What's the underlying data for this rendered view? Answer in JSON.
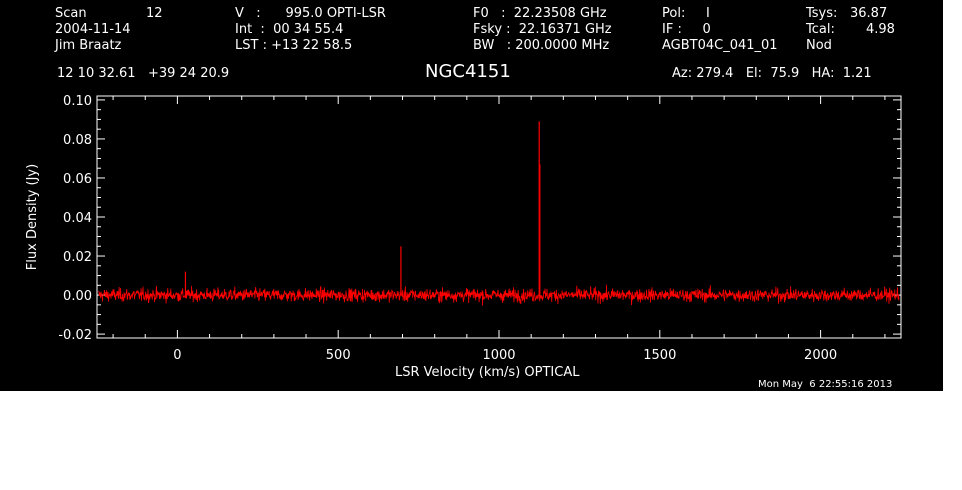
{
  "header": {
    "scan_label": "Scan",
    "scan_value": "12",
    "date": "2004-11-14",
    "observer": "Jim Braatz",
    "v_line": "V   :      995.0 OPTI-LSR",
    "int_line": "Int  :  00 34 55.4",
    "lst_line": "LST : +13 22 58.5",
    "f0_line": "F0   :  22.23508 GHz",
    "fsky_line": "Fsky :  22.16371 GHz",
    "bw_line": "BW   : 200.0000 MHz",
    "pol_line": "Pol:     I",
    "if_line": "IF :     0",
    "project": "AGBT04C_041_01",
    "tsys_label": "Tsys:",
    "tsys_value": "36.87",
    "tcal_label": "Tcal:",
    "tcal_value": "4.98",
    "mode": "Nod",
    "coords": "12 10 32.61   +39 24 20.9",
    "source": "NGC4151",
    "azelha": "Az: 279.4   El:  75.9   HA:  1.21"
  },
  "footer": {
    "timestamp": "Mon May  6 22:55:16 2013"
  },
  "colors": {
    "background": "#000000",
    "axes": "#ffffff",
    "trace": "#ff0000"
  },
  "chart_data": {
    "type": "line",
    "title": "NGC4151",
    "xlabel": "LSR Velocity (km/s) OPTICAL",
    "ylabel": "Flux Density (Jy)",
    "xlim": [
      -250,
      2250
    ],
    "ylim": [
      -0.022,
      0.102
    ],
    "xticks": [
      0,
      500,
      1000,
      1500,
      2000
    ],
    "xtick_labels": [
      "0",
      "500",
      "1000",
      "1500",
      "2000"
    ],
    "yticks": [
      -0.02,
      0.0,
      0.02,
      0.04,
      0.06,
      0.08,
      0.1
    ],
    "ytick_labels": [
      "-0.02",
      "0.00",
      "0.02",
      "0.04",
      "0.06",
      "0.08",
      "0.10"
    ],
    "grid": false,
    "series": [
      {
        "x_range": [
          -245,
          2245
        ],
        "baseline": 0.0,
        "noise_rms": 0.003,
        "peaks": [
          {
            "x": 25,
            "y": 0.012
          },
          {
            "x": 695,
            "y": 0.025
          },
          {
            "x": 1125,
            "y": 0.089
          },
          {
            "x": 1127,
            "y": 0.067
          }
        ]
      }
    ]
  }
}
